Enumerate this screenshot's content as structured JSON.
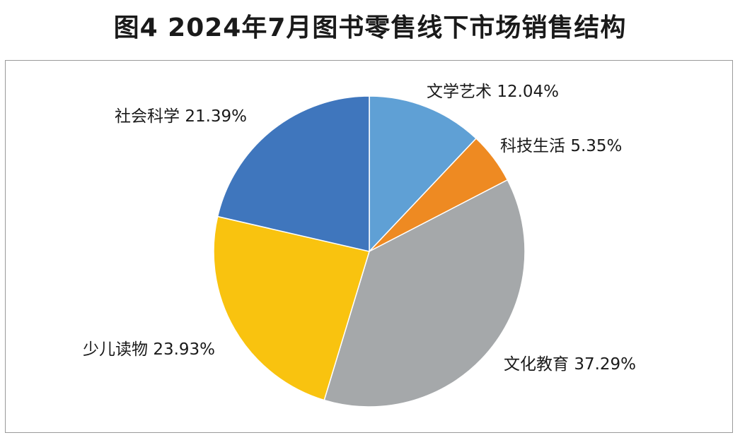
{
  "chart_data": {
    "type": "pie",
    "title": "图4 2024年7月图书零售线下市场销售结构",
    "slices": [
      {
        "label": "文学艺术",
        "value": 12.04,
        "value_label": "12.04%",
        "color": "#5fa0d5"
      },
      {
        "label": "科技生活",
        "value": 5.35,
        "value_label": "5.35%",
        "color": "#ee8a22"
      },
      {
        "label": "文化教育",
        "value": 37.29,
        "value_label": "37.29%",
        "color": "#a5a8aa"
      },
      {
        "label": "少儿读物",
        "value": 23.93,
        "value_label": "23.93%",
        "color": "#f9c30f"
      },
      {
        "label": "社会科学",
        "value": 21.39,
        "value_label": "21.39%",
        "color": "#3f76bd"
      }
    ],
    "start_angle": "12 o'clock",
    "direction": "clockwise",
    "legend": "none (direct labels)"
  }
}
